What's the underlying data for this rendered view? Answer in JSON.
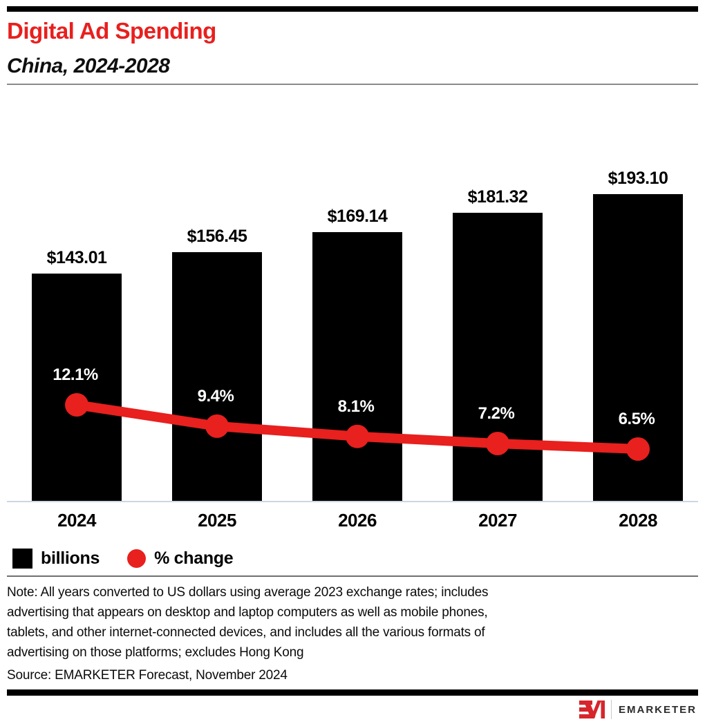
{
  "header": {
    "title": "Digital Ad Spending",
    "subtitle": "China, 2024-2028"
  },
  "chart_data": {
    "type": "bar",
    "categories": [
      "2024",
      "2025",
      "2026",
      "2027",
      "2028"
    ],
    "series": [
      {
        "name": "billions",
        "type": "bar",
        "values": [
          143.01,
          156.45,
          169.14,
          181.32,
          193.1
        ],
        "labels": [
          "$143.01",
          "$156.45",
          "$169.14",
          "$181.32",
          "$193.10"
        ],
        "color": "#000000"
      },
      {
        "name": "% change",
        "type": "line",
        "values": [
          12.1,
          9.4,
          8.1,
          7.2,
          6.5
        ],
        "labels": [
          "12.1%",
          "9.4%",
          "8.1%",
          "7.2%",
          "6.5%"
        ],
        "color": "#e8201e"
      }
    ],
    "title": "Digital Ad Spending",
    "subtitle": "China, 2024-2028",
    "xlabel": "",
    "ylabel": "",
    "bar_axis_range": [
      0,
      193.1
    ],
    "grid": false,
    "legend_position": "bottom",
    "legend": [
      {
        "label": "billions",
        "swatch": "square",
        "color": "#000000"
      },
      {
        "label": "% change",
        "swatch": "circle",
        "color": "#e8201e"
      }
    ]
  },
  "note": {
    "lines": [
      "Note: All years converted to US dollars using average 2023 exchange rates; includes",
      "advertising that appears on desktop and laptop computers as well as mobile phones,",
      "tablets, and other internet-connected devices, and includes all the various formats of",
      "advertising on those platforms; excludes Hong Kong"
    ]
  },
  "source": "Source: EMARKETER Forecast, November 2024",
  "footer": {
    "logo_text": "EMARKETER"
  },
  "colors": {
    "accent_red": "#e8201e",
    "logo_red": "#d6252c",
    "bar_black": "#000000"
  }
}
